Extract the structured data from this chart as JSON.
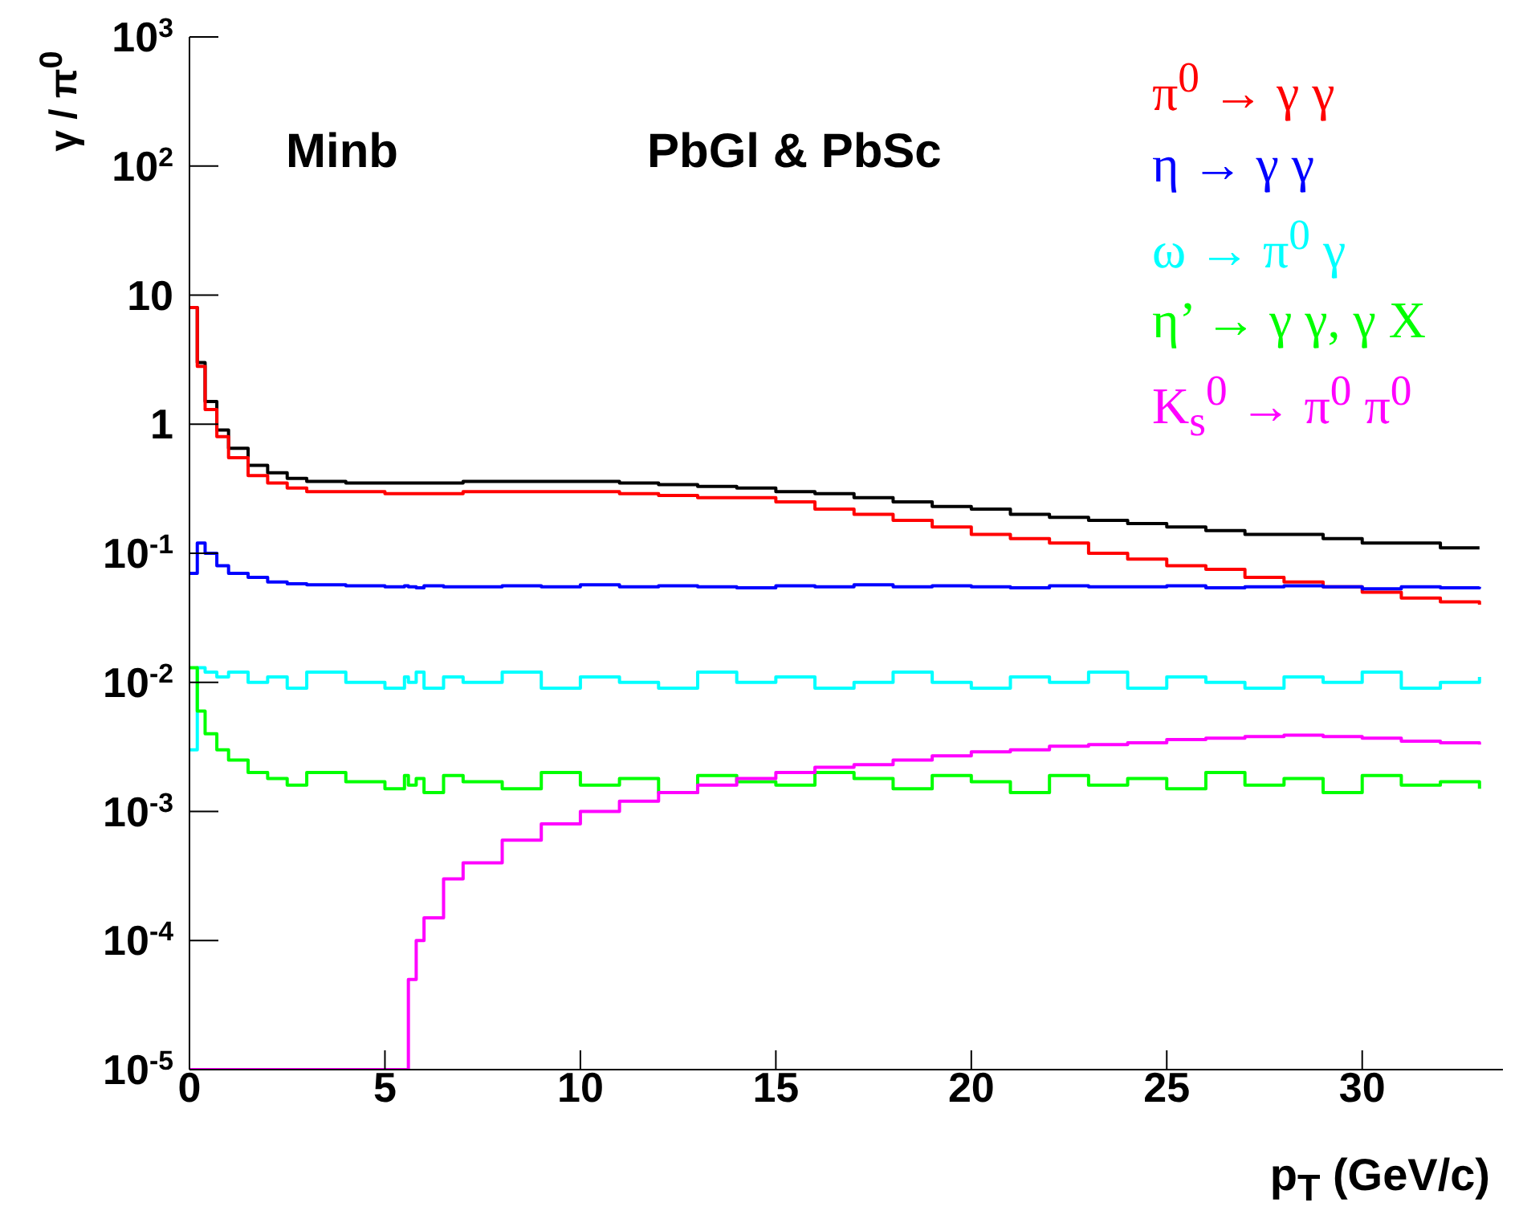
{
  "chart_data": {
    "type": "step",
    "ylabel": "γ / π$^{0}$",
    "xlabel": "p$_{T}$ (GeV/c)",
    "annotations": [
      "Minb",
      "PbGl & PbSc"
    ],
    "x": [
      0,
      0.2,
      0.4,
      0.7,
      1,
      1.5,
      2,
      2.5,
      3,
      4,
      5,
      5.5,
      5.6,
      5.8,
      6,
      6.5,
      7,
      8,
      9,
      10,
      11,
      12,
      13,
      14,
      15,
      16,
      17,
      18,
      19,
      20,
      21,
      22,
      23,
      24,
      25,
      26,
      27,
      28,
      29,
      30,
      31,
      32,
      33
    ],
    "series": [
      {
        "color": "#000000",
        "values": [
          8,
          3,
          1.5,
          0.9,
          0.65,
          0.48,
          0.42,
          0.38,
          0.36,
          0.35,
          0.35,
          0.35,
          0.35,
          0.35,
          0.35,
          0.35,
          0.36,
          0.36,
          0.36,
          0.36,
          0.35,
          0.34,
          0.33,
          0.32,
          0.3,
          0.29,
          0.27,
          0.25,
          0.23,
          0.22,
          0.2,
          0.19,
          0.18,
          0.17,
          0.16,
          0.15,
          0.14,
          0.14,
          0.13,
          0.12,
          0.12,
          0.11,
          0.11
        ]
      },
      {
        "name": "π$^{0}$ → γ γ",
        "color": "#ff0000",
        "values": [
          8,
          2.8,
          1.3,
          0.8,
          0.55,
          0.4,
          0.35,
          0.32,
          0.3,
          0.3,
          0.29,
          0.29,
          0.29,
          0.29,
          0.29,
          0.29,
          0.3,
          0.3,
          0.3,
          0.3,
          0.29,
          0.28,
          0.27,
          0.27,
          0.25,
          0.22,
          0.2,
          0.18,
          0.16,
          0.14,
          0.13,
          0.12,
          0.1,
          0.09,
          0.08,
          0.075,
          0.065,
          0.06,
          0.055,
          0.05,
          0.045,
          0.042,
          0.04
        ]
      },
      {
        "name": "η → γ γ",
        "color": "#0000ff",
        "values": [
          0.07,
          0.12,
          0.1,
          0.08,
          0.07,
          0.065,
          0.06,
          0.058,
          0.057,
          0.056,
          0.055,
          0.056,
          0.055,
          0.054,
          0.056,
          0.055,
          0.055,
          0.056,
          0.055,
          0.057,
          0.055,
          0.056,
          0.055,
          0.054,
          0.056,
          0.055,
          0.057,
          0.055,
          0.056,
          0.055,
          0.054,
          0.056,
          0.055,
          0.055,
          0.056,
          0.054,
          0.055,
          0.056,
          0.055,
          0.053,
          0.055,
          0.054,
          0.055
        ]
      },
      {
        "name": "ω → π$^{0}$ γ",
        "color": "#00ffff",
        "values": [
          0.003,
          0.013,
          0.012,
          0.011,
          0.012,
          0.01,
          0.011,
          0.009,
          0.012,
          0.01,
          0.009,
          0.011,
          0.01,
          0.012,
          0.009,
          0.011,
          0.01,
          0.012,
          0.009,
          0.011,
          0.01,
          0.009,
          0.012,
          0.01,
          0.011,
          0.009,
          0.01,
          0.012,
          0.01,
          0.009,
          0.011,
          0.01,
          0.012,
          0.009,
          0.011,
          0.01,
          0.009,
          0.011,
          0.01,
          0.012,
          0.009,
          0.01,
          0.011
        ]
      },
      {
        "name": "η’ → γ γ, γ X",
        "color": "#00ff00",
        "values": [
          0.013,
          0.006,
          0.004,
          0.003,
          0.0025,
          0.002,
          0.0018,
          0.0016,
          0.002,
          0.0017,
          0.0015,
          0.0019,
          0.0016,
          0.0018,
          0.0014,
          0.0019,
          0.0017,
          0.0015,
          0.002,
          0.0016,
          0.0018,
          0.0014,
          0.0019,
          0.0017,
          0.0016,
          0.002,
          0.0018,
          0.0015,
          0.0019,
          0.0017,
          0.0014,
          0.0019,
          0.0016,
          0.0018,
          0.0015,
          0.002,
          0.0016,
          0.0018,
          0.0014,
          0.0019,
          0.0016,
          0.0017,
          0.0015
        ]
      },
      {
        "name": "K$_{s}$$^{0}$ → π$^{0}$ π$^{0}$",
        "color": "#ff00ff",
        "values": [
          1e-05,
          1e-05,
          1e-05,
          1e-05,
          1e-05,
          1e-05,
          1e-05,
          1e-05,
          1e-05,
          1e-05,
          1e-05,
          1e-05,
          5e-05,
          0.0001,
          0.00015,
          0.0003,
          0.0004,
          0.0006,
          0.0008,
          0.001,
          0.0012,
          0.0014,
          0.0016,
          0.0018,
          0.002,
          0.0022,
          0.0023,
          0.0025,
          0.0027,
          0.0029,
          0.003,
          0.0032,
          0.0033,
          0.0034,
          0.0036,
          0.0037,
          0.0038,
          0.0039,
          0.0038,
          0.0037,
          0.0035,
          0.0034,
          0.0033
        ]
      }
    ],
    "xlim": [
      0,
      33.6
    ],
    "xticks": [
      0,
      5,
      10,
      15,
      20,
      25,
      30
    ],
    "ylim": [
      1e-05,
      1000
    ],
    "yticks": [
      {
        "value": 1e-05,
        "label": "10$^{-5}$"
      },
      {
        "value": 0.0001,
        "label": "10$^{-4}$"
      },
      {
        "value": 0.001,
        "label": "10$^{-3}$"
      },
      {
        "value": 0.01,
        "label": "10$^{-2}$"
      },
      {
        "value": 0.1,
        "label": "10$^{-1}$"
      },
      1,
      10,
      {
        "value": 100,
        "label": "10$^{2}$"
      },
      {
        "value": 1000,
        "label": "10$^{3}$"
      }
    ],
    "log": true,
    "legend": "top right"
  }
}
